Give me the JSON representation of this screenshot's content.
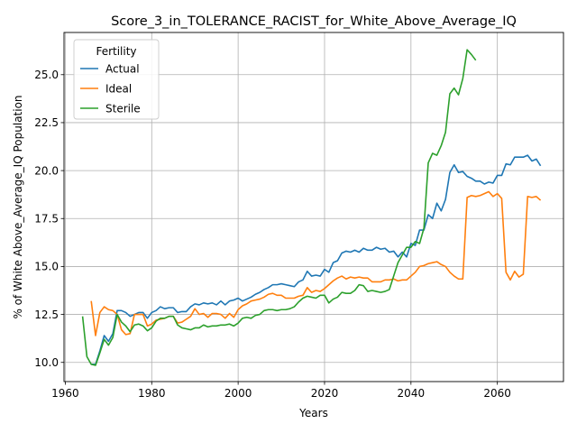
{
  "chart_data": {
    "type": "line",
    "title": "Score_3_in_TOLERANCE_RACIST_for_White_Above_Average_IQ",
    "xlabel": "Years",
    "ylabel": "% of White Above_Average_IQ Population",
    "xlim": [
      1959.7,
      2075.3
    ],
    "ylim": [
      9.0,
      27.2
    ],
    "xticks": [
      1960,
      1980,
      2000,
      2020,
      2040,
      2060
    ],
    "yticks": [
      10.0,
      12.5,
      15.0,
      17.5,
      20.0,
      22.5,
      25.0
    ],
    "xtick_labels": [
      "1960",
      "1980",
      "2000",
      "2020",
      "2040",
      "2060"
    ],
    "ytick_labels": [
      "10.0",
      "12.5",
      "15.0",
      "17.5",
      "20.0",
      "22.5",
      "25.0"
    ],
    "grid": true,
    "legend": {
      "title": "Fertility",
      "placement": "top-left"
    },
    "series": [
      {
        "name": "Actual",
        "color": "#1f77b4",
        "x": [
          1966,
          1967,
          1968,
          1969,
          1970,
          1971,
          1972,
          1973,
          1974,
          1975,
          1976,
          1977,
          1978,
          1979,
          1980,
          1981,
          1982,
          1983,
          1984,
          1985,
          1986,
          1987,
          1988,
          1989,
          1990,
          1991,
          1992,
          1993,
          1994,
          1995,
          1996,
          1997,
          1998,
          1999,
          2000,
          2001,
          2002,
          2003,
          2004,
          2005,
          2006,
          2007,
          2008,
          2009,
          2010,
          2011,
          2012,
          2013,
          2014,
          2015,
          2016,
          2017,
          2018,
          2019,
          2020,
          2021,
          2022,
          2023,
          2024,
          2025,
          2026,
          2027,
          2028,
          2029,
          2030,
          2031,
          2032,
          2033,
          2034,
          2035,
          2036,
          2037,
          2038,
          2039,
          2040,
          2041,
          2042,
          2043,
          2044,
          2045,
          2046,
          2047,
          2048,
          2049,
          2050,
          2051,
          2052,
          2053,
          2054,
          2055,
          2056,
          2057,
          2058,
          2059,
          2060,
          2061,
          2062,
          2063,
          2064,
          2065,
          2066,
          2067,
          2068,
          2069,
          2070
        ],
        "y": [
          9.9,
          9.9,
          10.6,
          11.4,
          11.1,
          11.5,
          12.7,
          12.7,
          12.6,
          12.4,
          12.5,
          12.6,
          12.6,
          12.3,
          12.6,
          12.7,
          12.9,
          12.8,
          12.85,
          12.85,
          12.6,
          12.65,
          12.65,
          12.9,
          13.05,
          13.0,
          13.1,
          13.05,
          13.1,
          13.0,
          13.2,
          13.0,
          13.2,
          13.25,
          13.35,
          13.2,
          13.3,
          13.4,
          13.55,
          13.65,
          13.8,
          13.9,
          14.05,
          14.05,
          14.1,
          14.05,
          14.0,
          13.95,
          14.2,
          14.3,
          14.75,
          14.5,
          14.55,
          14.5,
          14.85,
          14.7,
          15.2,
          15.3,
          15.7,
          15.8,
          15.75,
          15.85,
          15.75,
          15.95,
          15.85,
          15.85,
          16.0,
          15.9,
          15.95,
          15.75,
          15.8,
          15.5,
          15.75,
          15.5,
          16.2,
          16.1,
          16.9,
          16.9,
          17.7,
          17.5,
          18.3,
          17.9,
          18.5,
          19.9,
          20.3,
          19.9,
          19.95,
          19.7,
          19.6,
          19.45,
          19.45,
          19.3,
          19.4,
          19.35,
          19.75,
          19.75,
          20.35,
          20.3,
          20.7,
          20.7,
          20.7,
          20.8,
          20.5,
          20.6,
          20.25
        ]
      },
      {
        "name": "Ideal",
        "color": "#ff7f0e",
        "x": [
          1966,
          1967,
          1968,
          1969,
          1970,
          1971,
          1972,
          1973,
          1974,
          1975,
          1976,
          1977,
          1978,
          1979,
          1980,
          1981,
          1982,
          1983,
          1984,
          1985,
          1986,
          1987,
          1988,
          1989,
          1990,
          1991,
          1992,
          1993,
          1994,
          1995,
          1996,
          1997,
          1998,
          1999,
          2000,
          2001,
          2002,
          2003,
          2004,
          2005,
          2006,
          2007,
          2008,
          2009,
          2010,
          2011,
          2012,
          2013,
          2014,
          2015,
          2016,
          2017,
          2018,
          2019,
          2020,
          2021,
          2022,
          2023,
          2024,
          2025,
          2026,
          2027,
          2028,
          2029,
          2030,
          2031,
          2032,
          2033,
          2034,
          2035,
          2036,
          2037,
          2038,
          2039,
          2040,
          2041,
          2042,
          2043,
          2044,
          2045,
          2046,
          2047,
          2048,
          2049,
          2050,
          2051,
          2052,
          2053,
          2054,
          2055,
          2056,
          2057,
          2058,
          2059,
          2060,
          2061,
          2062,
          2063,
          2064,
          2065,
          2066,
          2067,
          2068,
          2069,
          2070
        ],
        "y": [
          13.2,
          11.4,
          12.6,
          12.9,
          12.75,
          12.7,
          12.5,
          11.7,
          11.45,
          11.5,
          12.5,
          12.5,
          12.5,
          11.9,
          12.0,
          12.2,
          12.25,
          12.3,
          12.4,
          12.4,
          12.05,
          12.1,
          12.25,
          12.4,
          12.8,
          12.5,
          12.55,
          12.35,
          12.55,
          12.55,
          12.5,
          12.3,
          12.55,
          12.35,
          12.75,
          12.95,
          13.05,
          13.2,
          13.25,
          13.3,
          13.4,
          13.55,
          13.6,
          13.5,
          13.5,
          13.35,
          13.35,
          13.35,
          13.45,
          13.5,
          13.9,
          13.65,
          13.75,
          13.7,
          13.85,
          14.05,
          14.25,
          14.4,
          14.5,
          14.35,
          14.45,
          14.4,
          14.45,
          14.4,
          14.4,
          14.2,
          14.2,
          14.2,
          14.3,
          14.3,
          14.35,
          14.25,
          14.3,
          14.3,
          14.5,
          14.7,
          15.0,
          15.05,
          15.15,
          15.2,
          15.25,
          15.1,
          15.0,
          14.7,
          14.5,
          14.35,
          14.35,
          18.6,
          18.7,
          18.65,
          18.7,
          18.8,
          18.9,
          18.65,
          18.8,
          18.55,
          14.7,
          14.3,
          14.75,
          14.45,
          14.6,
          18.65,
          18.6,
          18.65,
          18.45
        ]
      },
      {
        "name": "Sterile",
        "color": "#2ca02c",
        "x": [
          1964,
          1965,
          1966,
          1967,
          1968,
          1969,
          1970,
          1971,
          1972,
          1973,
          1974,
          1975,
          1976,
          1977,
          1978,
          1979,
          1980,
          1981,
          1982,
          1983,
          1984,
          1985,
          1986,
          1987,
          1988,
          1989,
          1990,
          1991,
          1992,
          1993,
          1994,
          1995,
          1996,
          1997,
          1998,
          1999,
          2000,
          2001,
          2002,
          2003,
          2004,
          2005,
          2006,
          2007,
          2008,
          2009,
          2010,
          2011,
          2012,
          2013,
          2014,
          2015,
          2016,
          2017,
          2018,
          2019,
          2020,
          2021,
          2022,
          2023,
          2024,
          2025,
          2026,
          2027,
          2028,
          2029,
          2030,
          2031,
          2032,
          2033,
          2034,
          2035,
          2036,
          2037,
          2038,
          2039,
          2040,
          2041,
          2042,
          2043,
          2044,
          2045,
          2046,
          2047,
          2048,
          2049,
          2050,
          2051,
          2052,
          2053,
          2054,
          2055
        ],
        "y": [
          12.4,
          10.3,
          9.9,
          9.85,
          10.5,
          11.2,
          10.9,
          11.3,
          12.5,
          12.1,
          11.9,
          11.6,
          11.95,
          12.0,
          11.9,
          11.65,
          11.8,
          12.15,
          12.3,
          12.3,
          12.4,
          12.4,
          11.95,
          11.8,
          11.75,
          11.7,
          11.8,
          11.8,
          11.95,
          11.85,
          11.9,
          11.9,
          11.95,
          11.95,
          12.0,
          11.9,
          12.05,
          12.3,
          12.35,
          12.3,
          12.45,
          12.5,
          12.7,
          12.75,
          12.75,
          12.7,
          12.75,
          12.75,
          12.8,
          12.9,
          13.15,
          13.35,
          13.45,
          13.4,
          13.35,
          13.5,
          13.5,
          13.1,
          13.3,
          13.4,
          13.65,
          13.6,
          13.6,
          13.75,
          14.05,
          14.0,
          13.7,
          13.75,
          13.7,
          13.65,
          13.7,
          13.8,
          14.5,
          15.2,
          15.6,
          16.0,
          16.0,
          16.3,
          16.2,
          17.0,
          20.4,
          20.9,
          20.8,
          21.3,
          22.0,
          24.0,
          24.3,
          23.95,
          24.8,
          26.3,
          26.05,
          25.75
        ]
      }
    ]
  }
}
